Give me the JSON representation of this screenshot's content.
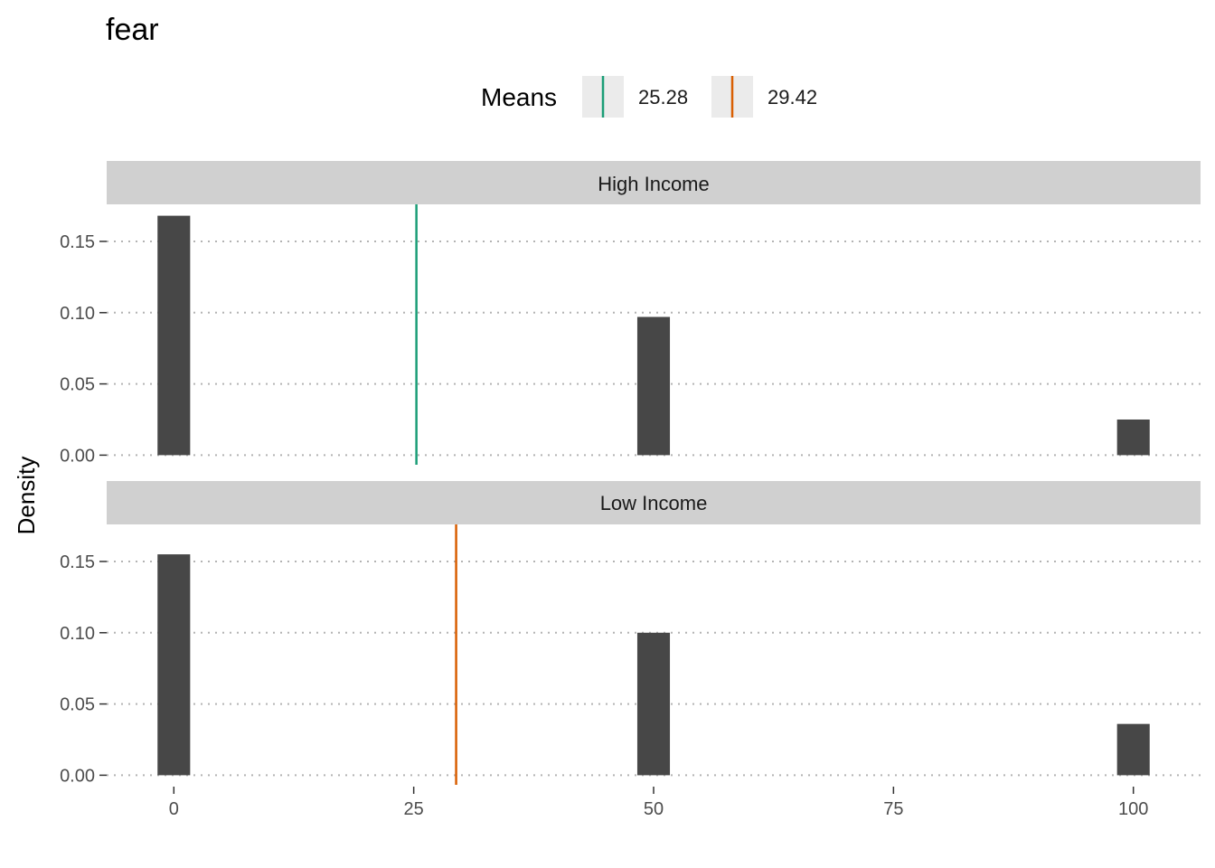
{
  "chart_data": {
    "type": "bar",
    "title": "fear",
    "xlabel": "",
    "ylabel": "Density",
    "xlim": [
      -7,
      107
    ],
    "ylim": [
      -0.008,
      0.176
    ],
    "x_ticks": [
      0,
      25,
      50,
      75,
      100
    ],
    "y_ticks": [
      0.0,
      0.05,
      0.1,
      0.15
    ],
    "y_tick_labels": [
      "0.00",
      "0.05",
      "0.10",
      "0.15"
    ],
    "bar_width": 3.4,
    "grid": "dotted horizontal",
    "legend": {
      "title": "Means",
      "placement": "top",
      "entries": [
        {
          "label": "25.28",
          "color": "#1b9e77"
        },
        {
          "label": "29.42",
          "color": "#d95f02"
        }
      ]
    },
    "panels": [
      {
        "name": "High Income",
        "x": [
          0,
          50,
          100
        ],
        "values": [
          0.168,
          0.097,
          0.025
        ],
        "mean": 25.28,
        "mean_color": "#1b9e77"
      },
      {
        "name": "Low Income",
        "x": [
          0,
          50,
          100
        ],
        "values": [
          0.155,
          0.1,
          0.036
        ],
        "mean": 29.42,
        "mean_color": "#d95f02"
      }
    ],
    "bar_color": "#474747",
    "strip_color": "#d0d0d0"
  }
}
